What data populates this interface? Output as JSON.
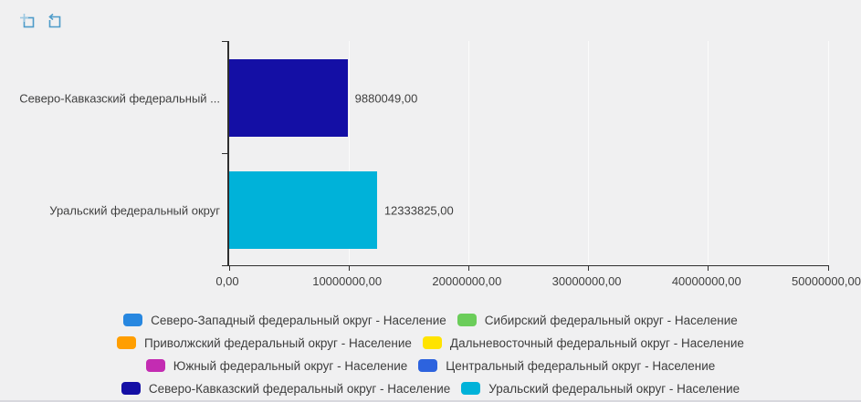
{
  "toolbar": {
    "zoom_selection_tooltip": "Zoom selection",
    "undo_zoom_tooltip": "Undo zoom",
    "icon_color": "#4d9bc9",
    "icon_color_light": "#9ec9e2"
  },
  "chart_data": {
    "type": "bar",
    "orientation": "horizontal",
    "title": "",
    "xlabel": "",
    "ylabel": "",
    "grid": true,
    "xlim": [
      0,
      50000000
    ],
    "x_ticks": [
      "0,00",
      "10000000,00",
      "20000000,00",
      "30000000,00",
      "40000000,00",
      "50000000,00"
    ],
    "x_tick_values": [
      0,
      10000000,
      20000000,
      30000000,
      40000000,
      50000000
    ],
    "categories": [
      "Северо-Кавказский федеральный ...",
      "Уральский федеральный округ"
    ],
    "values": [
      9880049,
      12333825
    ],
    "value_labels": [
      "9880049,00",
      "12333825,00"
    ],
    "bar_colors": [
      "#140fa5",
      "#00b2d9"
    ],
    "legend_position": "bottom",
    "legend": [
      {
        "label": "Северо-Западный федеральный округ - Население",
        "color": "#2787e0"
      },
      {
        "label": "Сибирский федеральный округ - Население",
        "color": "#6bcd5a"
      },
      {
        "label": "Приволжский федеральный округ - Население",
        "color": "#ff9e00"
      },
      {
        "label": "Дальневосточный федеральный округ - Население",
        "color": "#ffe300"
      },
      {
        "label": "Южный федеральный округ - Население",
        "color": "#c32cb2"
      },
      {
        "label": "Центральный федеральный округ - Население",
        "color": "#2d63de"
      },
      {
        "label": "Северо-Кавказский федеральный округ - Население",
        "color": "#140fa5"
      },
      {
        "label": "Уральский федеральный округ - Население",
        "color": "#00b2d9"
      }
    ]
  }
}
